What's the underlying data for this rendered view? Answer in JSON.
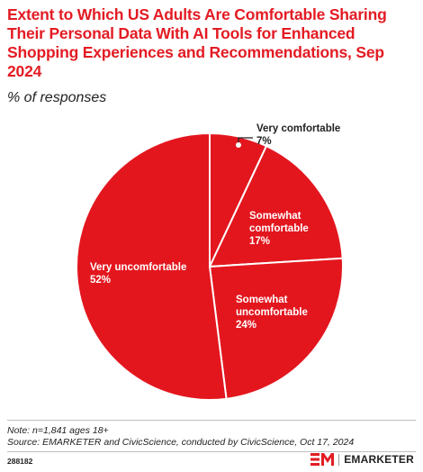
{
  "title": "Extent to Which US Adults Are Comfortable Sharing Their Personal Data With AI Tools for Enhanced Shopping Experiences and Recommendations, Sep 2024",
  "subtitle": "% of responses",
  "colors": {
    "accent": "#e31b23",
    "slice": "#e3161e",
    "slice_border": "#ffffff",
    "text_on_slice": "#ffffff",
    "text_outside": "#222222"
  },
  "chart_data": {
    "type": "pie",
    "title": "Extent to Which US Adults Are Comfortable Sharing Their Personal Data With AI Tools for Enhanced Shopping Experiences and Recommendations, Sep 2024",
    "subtitle": "% of responses",
    "slices": [
      {
        "label": [
          "Very",
          "comfortable"
        ],
        "value": 7,
        "value_label": "7%"
      },
      {
        "label": [
          "Somewhat",
          "comfortable"
        ],
        "value": 17,
        "value_label": "17%"
      },
      {
        "label": [
          "Somewhat",
          "uncomfortable"
        ],
        "value": 24,
        "value_label": "24%"
      },
      {
        "label": [
          "Very uncomfortable"
        ],
        "value": 52,
        "value_label": "52%"
      }
    ],
    "start": "12 o'clock, clockwise"
  },
  "footer": {
    "note": "Note: n=1,841 ages 18+",
    "source": "Source: EMARKETER and CivicScience, conducted by CivicScience, Oct 17, 2024",
    "chart_id": "288182",
    "brand": "EMARKETER"
  }
}
